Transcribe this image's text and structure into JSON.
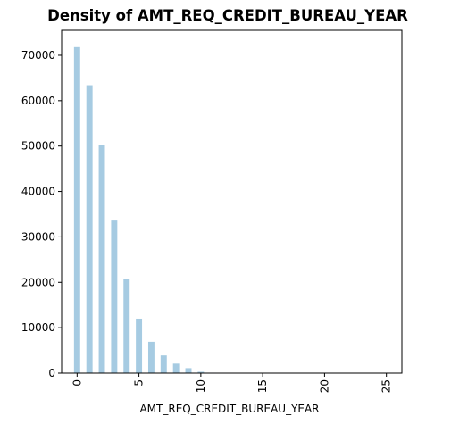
{
  "chart_data": {
    "type": "bar",
    "title": "Density of AMT_REQ_CREDIT_BUREAU_YEAR",
    "xlabel": "AMT_REQ_CREDIT_BUREAU_YEAR",
    "ylabel": "",
    "bar_color": "#a6cbe2",
    "xlim": [
      -1.25,
      26.25
    ],
    "ylim": [
      0,
      75500
    ],
    "x_ticks": [
      0,
      5,
      10,
      15,
      20,
      25
    ],
    "y_ticks": [
      0,
      10000,
      20000,
      30000,
      40000,
      50000,
      60000,
      70000
    ],
    "x_tick_rotation": 90,
    "grid": false,
    "x": [
      0,
      1,
      2,
      3,
      4,
      5,
      6,
      7,
      8,
      9,
      10,
      11,
      12,
      13,
      14,
      15,
      16,
      17,
      18,
      19,
      20,
      21,
      22,
      23,
      24,
      25
    ],
    "values": [
      71800,
      63400,
      50200,
      33600,
      20700,
      12000,
      6900,
      3900,
      2100,
      1100,
      300,
      100,
      50,
      30,
      20,
      10,
      10,
      5,
      5,
      5,
      5,
      5,
      5,
      5,
      5,
      5
    ]
  }
}
